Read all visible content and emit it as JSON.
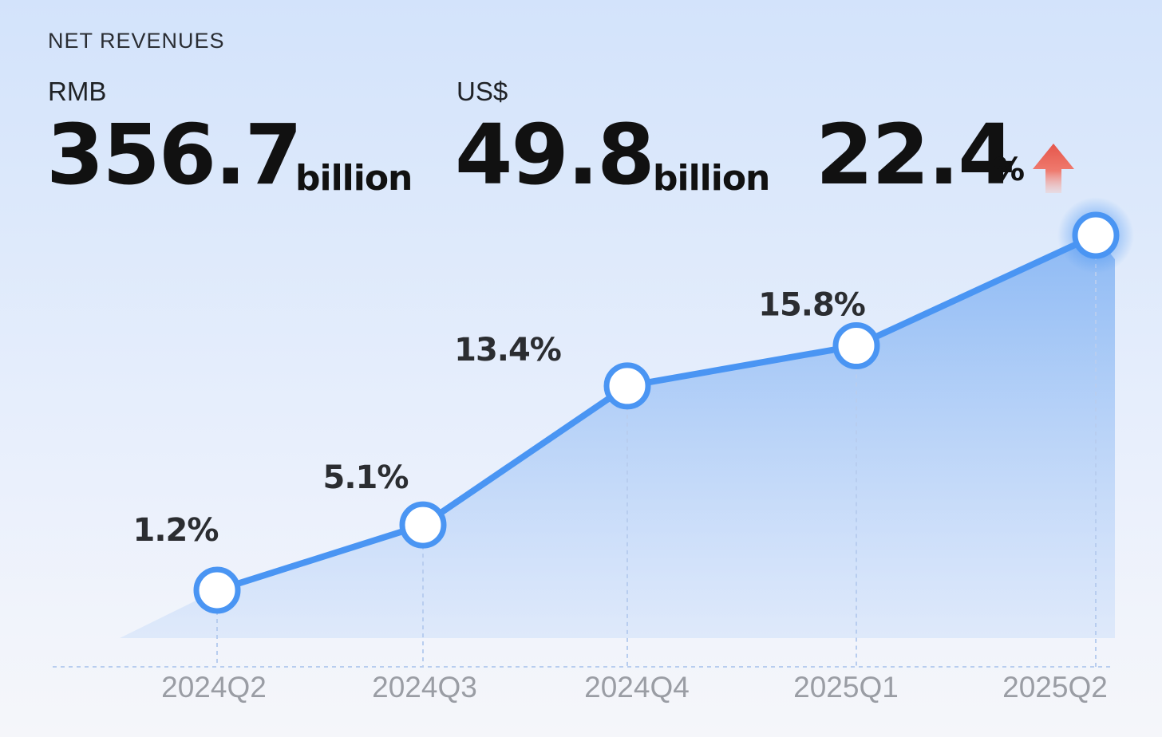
{
  "header": {
    "title": "NET REVENUES",
    "rmb": {
      "currency": "RMB",
      "value": "356.7",
      "unit": "billion"
    },
    "usd": {
      "currency": "US$",
      "value": "49.8",
      "unit": "billion"
    },
    "growth": {
      "value": "22.4",
      "sign": "%",
      "direction_icon": "up-arrow-icon"
    }
  },
  "colors": {
    "line": "#4a95f3",
    "area": "#8fbcf5",
    "arrow": "#e5564b",
    "marker_fill": "#ffffff"
  },
  "chart_data": {
    "type": "line",
    "title": "NET REVENUES",
    "categories": [
      "2024Q2",
      "2024Q3",
      "2024Q4",
      "2025Q1",
      "2025Q2"
    ],
    "series": [
      {
        "values": [
          1.2,
          5.1,
          13.4,
          15.8,
          22.4
        ]
      }
    ],
    "data_labels": [
      "1.2%",
      "5.1%",
      "13.4%",
      "15.8%",
      ""
    ],
    "xlabel": "",
    "ylabel": "",
    "grid": false,
    "legend": "none",
    "area_fill": true
  }
}
